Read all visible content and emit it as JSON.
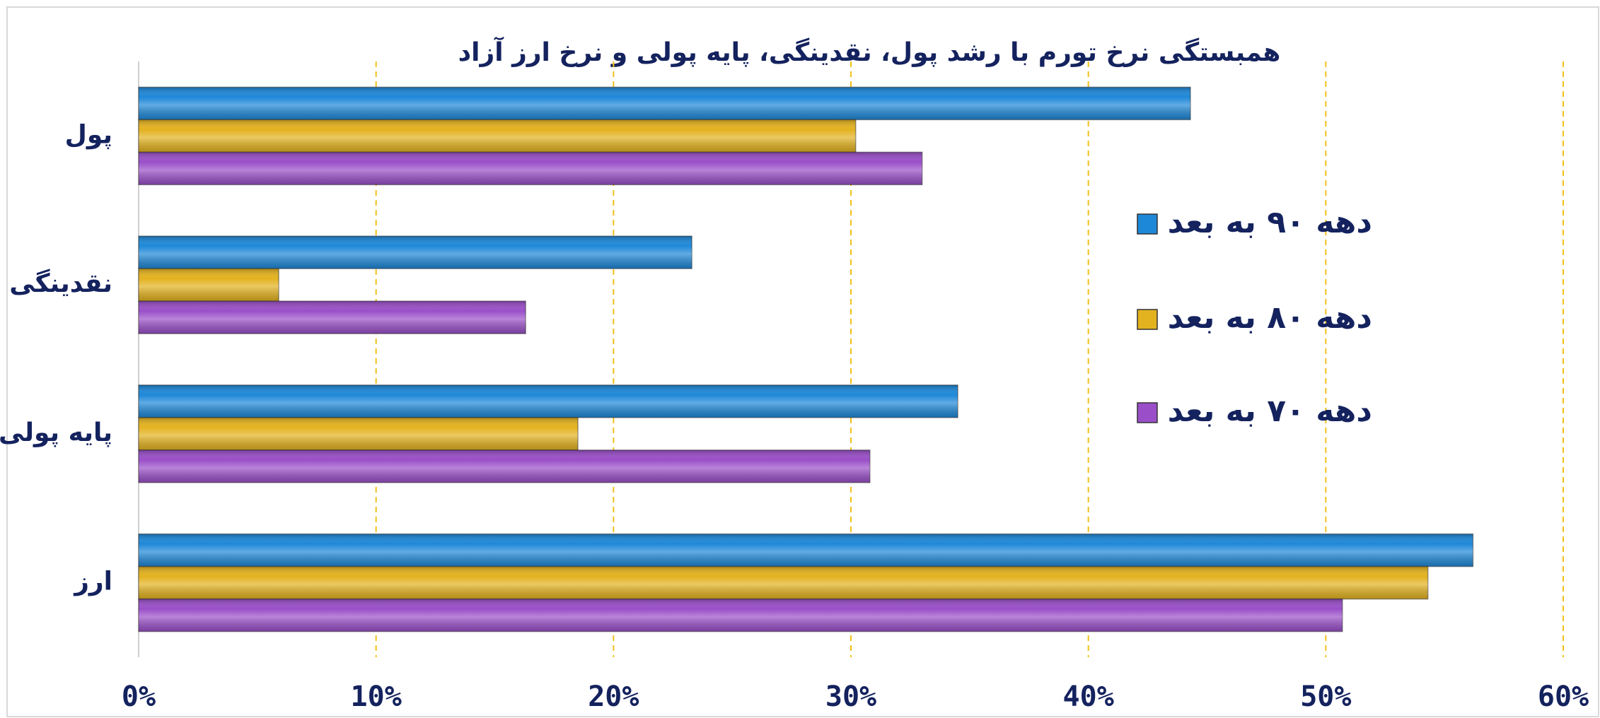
{
  "chart_data": {
    "type": "bar",
    "orientation": "horizontal",
    "title": "همبستگی نرخ تورم با رشد پول، نقدینگی، پایه پولی و نرخ ارز آزاد",
    "categories": [
      "پول",
      "نقدینگی",
      "پایه پولی",
      "ارز"
    ],
    "series": [
      {
        "name": "دهه ۹۰ به بعد",
        "color": "#1e88d8",
        "values": [
          44.3,
          23.3,
          34.5,
          56.2
        ]
      },
      {
        "name": "دهه ۸۰ به بعد",
        "color": "#e3b21f",
        "values": [
          30.2,
          5.9,
          18.5,
          54.3
        ]
      },
      {
        "name": "دهه ۷۰ به بعد",
        "color": "#9a4fc8",
        "values": [
          33.0,
          16.3,
          30.8,
          50.7
        ]
      }
    ],
    "xlim": [
      0,
      60
    ],
    "xticks": [
      {
        "value": 0,
        "label": "0%"
      },
      {
        "value": 10,
        "label": "10%"
      },
      {
        "value": 20,
        "label": "20%"
      },
      {
        "value": 30,
        "label": "30%"
      },
      {
        "value": 40,
        "label": "40%"
      },
      {
        "value": 50,
        "label": "50%"
      },
      {
        "value": 60,
        "label": "60%"
      }
    ],
    "grid": true,
    "legend": "right"
  }
}
